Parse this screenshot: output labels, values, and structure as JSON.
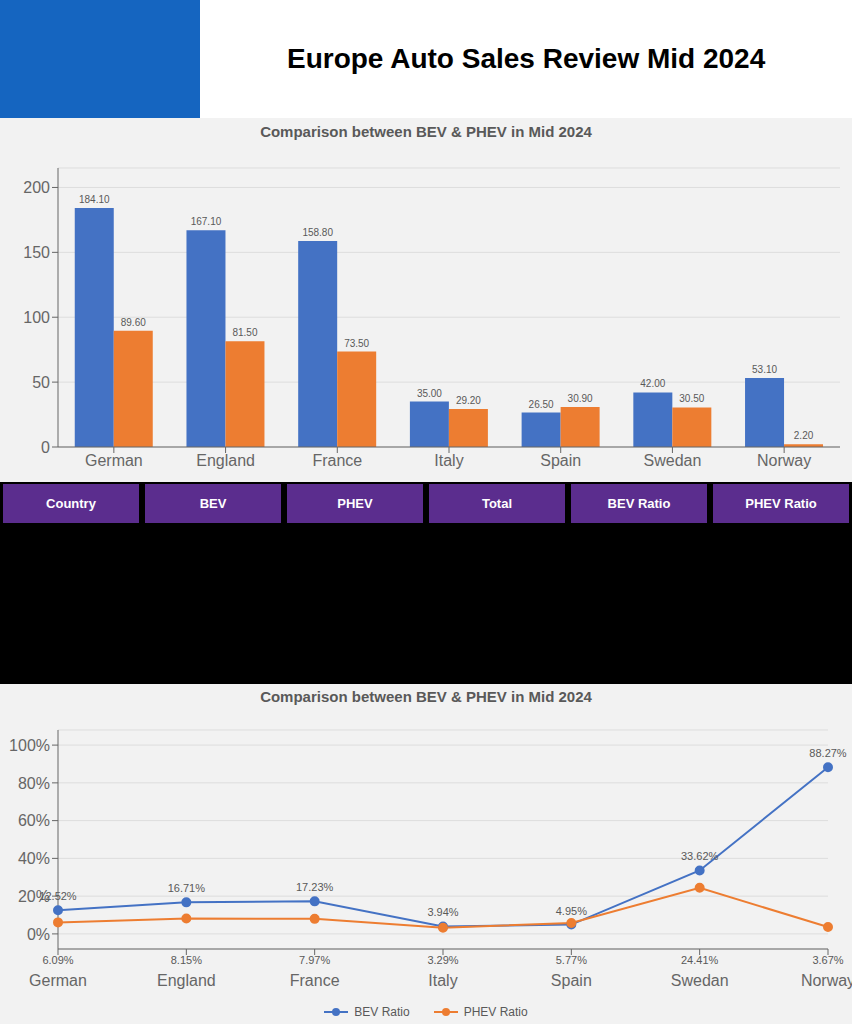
{
  "title": "Europe Auto Sales Review Mid 2024",
  "annotations": [
    "Country",
    "BEV",
    "PHEV",
    "Total",
    "BEV Ratio",
    "PHEV Ratio"
  ],
  "chart_data": [
    {
      "type": "bar",
      "title": "Comparison between BEV & PHEV in Mid 2024",
      "categories": [
        "German",
        "England",
        "France",
        "Italy",
        "Spain",
        "Swedan",
        "Norway"
      ],
      "series": [
        {
          "color": "#4472C4",
          "values": [
            184.1,
            167.1,
            158.8,
            35.0,
            26.5,
            42.0,
            53.1
          ],
          "value_labels": [
            "184.10",
            "167.10",
            "158.80",
            "35.00",
            "26.50",
            "42.00",
            "53.10"
          ]
        },
        {
          "color": "#ED7D31",
          "values": [
            89.6,
            81.5,
            73.5,
            29.2,
            30.9,
            30.5,
            2.2
          ],
          "value_labels": [
            "89.60",
            "81.50",
            "73.50",
            "29.20",
            "30.90",
            "30.50",
            "2.20"
          ]
        }
      ],
      "ylim": [
        0,
        215
      ],
      "yticks": [
        0,
        50,
        100,
        150,
        200
      ],
      "grid": true,
      "data_labels": true
    },
    {
      "type": "line",
      "title": "Comparison between BEV & PHEV in Mid 2024",
      "categories": [
        "German",
        "England",
        "France",
        "Italy",
        "Spain",
        "Swedan",
        "Norway"
      ],
      "series": [
        {
          "name": "BEV Ratio",
          "color": "#4472C4",
          "marker": "circle",
          "values": [
            12.52,
            16.71,
            17.23,
            3.94,
            4.95,
            33.62,
            88.27
          ],
          "value_labels": [
            "12.52%",
            "16.71%",
            "17.23%",
            "3.94%",
            "4.95%",
            "33.62%",
            "88.27%"
          ]
        },
        {
          "name": "PHEV Ratio",
          "color": "#ED7D31",
          "marker": "circle",
          "values": [
            6.09,
            8.15,
            7.97,
            3.29,
            5.77,
            24.41,
            3.67
          ],
          "value_labels": [
            "6.09%",
            "8.15%",
            "7.97%",
            "3.29%",
            "5.77%",
            "24.41%",
            "3.67%"
          ]
        }
      ],
      "ylim": [
        -8,
        108
      ],
      "yticks": [
        {
          "value": 0,
          "label": "0%"
        },
        {
          "value": 20,
          "label": "20%"
        },
        {
          "value": 40,
          "label": "40%"
        },
        {
          "value": 60,
          "label": "60%"
        },
        {
          "value": 80,
          "label": "80%"
        },
        {
          "value": 100,
          "label": "100%"
        }
      ],
      "grid": true,
      "data_labels": true,
      "legend": "bottom"
    }
  ]
}
